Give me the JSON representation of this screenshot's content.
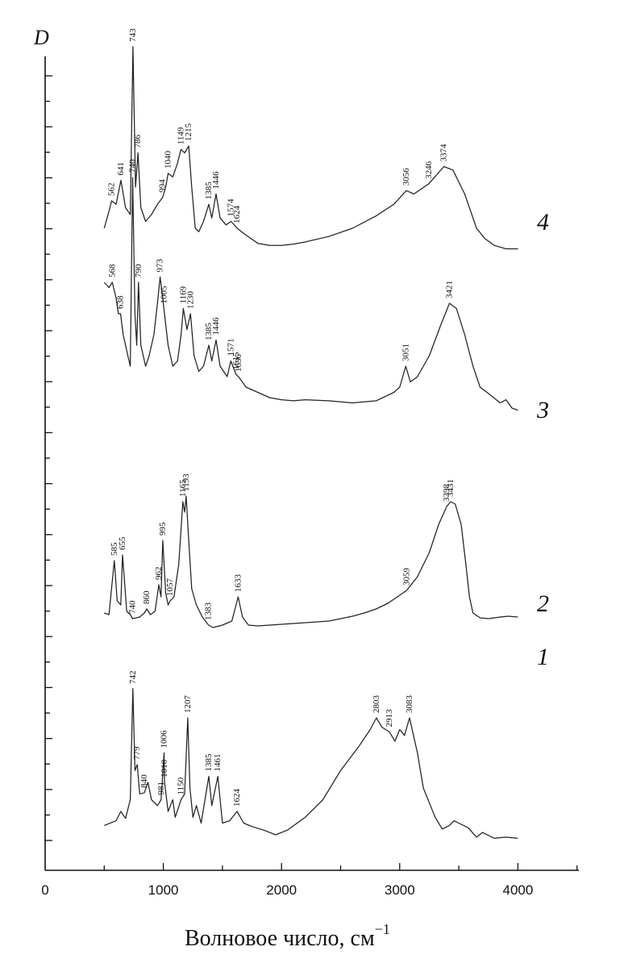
{
  "chart_data": {
    "type": "line",
    "ylabel": "D",
    "xlabel": "Волновое число, см",
    "xlabel_sup": "−1",
    "xlim": [
      0,
      4500
    ],
    "x_ticks": [
      0,
      1000,
      2000,
      3000,
      4000
    ],
    "x_tick_labels": [
      "0",
      "1000",
      "2000",
      "3000",
      "4000"
    ],
    "grid": false,
    "legend": "none",
    "series": [
      {
        "name": "1",
        "points": [
          [
            500,
            0.08
          ],
          [
            600,
            0.12
          ],
          [
            640,
            0.2
          ],
          [
            680,
            0.14
          ],
          [
            720,
            0.3
          ],
          [
            742,
            1.25
          ],
          [
            760,
            0.55
          ],
          [
            779,
            0.6
          ],
          [
            800,
            0.35
          ],
          [
            840,
            0.36
          ],
          [
            870,
            0.45
          ],
          [
            900,
            0.3
          ],
          [
            950,
            0.25
          ],
          [
            981,
            0.3
          ],
          [
            1006,
            0.7
          ],
          [
            1010,
            0.45
          ],
          [
            1040,
            0.2
          ],
          [
            1080,
            0.3
          ],
          [
            1100,
            0.15
          ],
          [
            1150,
            0.3
          ],
          [
            1180,
            0.35
          ],
          [
            1207,
            1.0
          ],
          [
            1225,
            0.4
          ],
          [
            1250,
            0.15
          ],
          [
            1280,
            0.25
          ],
          [
            1320,
            0.1
          ],
          [
            1385,
            0.5
          ],
          [
            1410,
            0.25
          ],
          [
            1461,
            0.5
          ],
          [
            1500,
            0.1
          ],
          [
            1560,
            0.12
          ],
          [
            1624,
            0.2
          ],
          [
            1680,
            0.1
          ],
          [
            1750,
            0.07
          ],
          [
            1850,
            0.04
          ],
          [
            1950,
            0.0
          ],
          [
            2050,
            0.04
          ],
          [
            2200,
            0.15
          ],
          [
            2350,
            0.3
          ],
          [
            2500,
            0.55
          ],
          [
            2650,
            0.75
          ],
          [
            2750,
            0.9
          ],
          [
            2803,
            1.0
          ],
          [
            2850,
            0.92
          ],
          [
            2913,
            0.88
          ],
          [
            2960,
            0.8
          ],
          [
            3000,
            0.9
          ],
          [
            3040,
            0.85
          ],
          [
            3083,
            1.0
          ],
          [
            3150,
            0.7
          ],
          [
            3200,
            0.4
          ],
          [
            3300,
            0.15
          ],
          [
            3360,
            0.05
          ],
          [
            3420,
            0.08
          ],
          [
            3460,
            0.12
          ],
          [
            3500,
            0.1
          ],
          [
            3580,
            0.06
          ],
          [
            3650,
            -0.02
          ],
          [
            3700,
            0.02
          ],
          [
            3800,
            -0.03
          ],
          [
            3900,
            -0.02
          ],
          [
            4000,
            -0.03
          ]
        ]
      },
      {
        "name": "2",
        "points": [
          [
            500,
            0.1
          ],
          [
            540,
            0.08
          ],
          [
            585,
            0.75
          ],
          [
            610,
            0.25
          ],
          [
            640,
            0.2
          ],
          [
            655,
            0.82
          ],
          [
            690,
            0.12
          ],
          [
            720,
            0.08
          ],
          [
            740,
            0.03
          ],
          [
            800,
            0.05
          ],
          [
            840,
            0.1
          ],
          [
            860,
            0.15
          ],
          [
            890,
            0.08
          ],
          [
            930,
            0.12
          ],
          [
            962,
            0.45
          ],
          [
            980,
            0.3
          ],
          [
            995,
            1.0
          ],
          [
            1020,
            0.35
          ],
          [
            1040,
            0.2
          ],
          [
            1057,
            0.25
          ],
          [
            1090,
            0.3
          ],
          [
            1130,
            0.7
          ],
          [
            1165,
            1.48
          ],
          [
            1180,
            1.35
          ],
          [
            1193,
            1.55
          ],
          [
            1215,
            1.0
          ],
          [
            1240,
            0.4
          ],
          [
            1280,
            0.2
          ],
          [
            1330,
            0.05
          ],
          [
            1383,
            -0.05
          ],
          [
            1420,
            -0.08
          ],
          [
            1500,
            -0.05
          ],
          [
            1580,
            0.0
          ],
          [
            1633,
            0.3
          ],
          [
            1670,
            0.05
          ],
          [
            1720,
            -0.05
          ],
          [
            1800,
            -0.06
          ],
          [
            1900,
            -0.05
          ],
          [
            2000,
            -0.04
          ],
          [
            2100,
            -0.03
          ],
          [
            2200,
            -0.02
          ],
          [
            2300,
            -0.01
          ],
          [
            2400,
            0.0
          ],
          [
            2500,
            0.03
          ],
          [
            2600,
            0.06
          ],
          [
            2700,
            0.1
          ],
          [
            2800,
            0.15
          ],
          [
            2900,
            0.22
          ],
          [
            3000,
            0.32
          ],
          [
            3059,
            0.38
          ],
          [
            3150,
            0.55
          ],
          [
            3250,
            0.85
          ],
          [
            3330,
            1.2
          ],
          [
            3398,
            1.42
          ],
          [
            3431,
            1.48
          ],
          [
            3470,
            1.45
          ],
          [
            3520,
            1.2
          ],
          [
            3560,
            0.7
          ],
          [
            3590,
            0.3
          ],
          [
            3620,
            0.1
          ],
          [
            3680,
            0.04
          ],
          [
            3750,
            0.03
          ],
          [
            3850,
            0.05
          ],
          [
            3920,
            0.06
          ],
          [
            4000,
            0.05
          ]
        ]
      },
      {
        "name": "3",
        "points": [
          [
            500,
            1.0
          ],
          [
            540,
            0.95
          ],
          [
            568,
            1.0
          ],
          [
            600,
            0.85
          ],
          [
            620,
            0.7
          ],
          [
            638,
            0.7
          ],
          [
            660,
            0.5
          ],
          [
            700,
            0.3
          ],
          [
            720,
            0.2
          ],
          [
            740,
            2.0
          ],
          [
            760,
            0.7
          ],
          [
            775,
            0.4
          ],
          [
            790,
            1.0
          ],
          [
            810,
            0.4
          ],
          [
            850,
            0.2
          ],
          [
            880,
            0.3
          ],
          [
            920,
            0.5
          ],
          [
            950,
            0.8
          ],
          [
            973,
            1.05
          ],
          [
            990,
            0.9
          ],
          [
            1005,
            0.75
          ],
          [
            1040,
            0.4
          ],
          [
            1080,
            0.2
          ],
          [
            1120,
            0.25
          ],
          [
            1150,
            0.5
          ],
          [
            1169,
            0.75
          ],
          [
            1200,
            0.55
          ],
          [
            1230,
            0.7
          ],
          [
            1260,
            0.3
          ],
          [
            1300,
            0.15
          ],
          [
            1340,
            0.2
          ],
          [
            1385,
            0.4
          ],
          [
            1410,
            0.25
          ],
          [
            1446,
            0.45
          ],
          [
            1480,
            0.2
          ],
          [
            1540,
            0.1
          ],
          [
            1571,
            0.25
          ],
          [
            1615,
            0.12
          ],
          [
            1636,
            0.1
          ],
          [
            1700,
            0.0
          ],
          [
            1800,
            -0.05
          ],
          [
            1900,
            -0.1
          ],
          [
            2000,
            -0.12
          ],
          [
            2100,
            -0.13
          ],
          [
            2200,
            -0.12
          ],
          [
            2400,
            -0.13
          ],
          [
            2600,
            -0.15
          ],
          [
            2800,
            -0.13
          ],
          [
            2950,
            -0.05
          ],
          [
            3000,
            0.0
          ],
          [
            3051,
            0.2
          ],
          [
            3090,
            0.05
          ],
          [
            3150,
            0.1
          ],
          [
            3250,
            0.3
          ],
          [
            3350,
            0.6
          ],
          [
            3421,
            0.8
          ],
          [
            3480,
            0.75
          ],
          [
            3550,
            0.5
          ],
          [
            3620,
            0.2
          ],
          [
            3680,
            0.0
          ],
          [
            3750,
            -0.06
          ],
          [
            3850,
            -0.15
          ],
          [
            3900,
            -0.12
          ],
          [
            3950,
            -0.2
          ],
          [
            4000,
            -0.22
          ]
        ]
      },
      {
        "name": "4",
        "points": [
          [
            500,
            0.0
          ],
          [
            540,
            0.25
          ],
          [
            562,
            0.4
          ],
          [
            600,
            0.35
          ],
          [
            641,
            0.7
          ],
          [
            680,
            0.3
          ],
          [
            720,
            0.2
          ],
          [
            743,
            2.65
          ],
          [
            765,
            0.6
          ],
          [
            786,
            1.1
          ],
          [
            810,
            0.3
          ],
          [
            850,
            0.1
          ],
          [
            900,
            0.2
          ],
          [
            950,
            0.35
          ],
          [
            994,
            0.45
          ],
          [
            1020,
            0.6
          ],
          [
            1040,
            0.8
          ],
          [
            1080,
            0.75
          ],
          [
            1120,
            0.95
          ],
          [
            1149,
            1.15
          ],
          [
            1180,
            1.1
          ],
          [
            1215,
            1.2
          ],
          [
            1240,
            0.6
          ],
          [
            1270,
            0.0
          ],
          [
            1300,
            -0.05
          ],
          [
            1340,
            0.1
          ],
          [
            1385,
            0.35
          ],
          [
            1410,
            0.15
          ],
          [
            1446,
            0.5
          ],
          [
            1480,
            0.15
          ],
          [
            1530,
            0.05
          ],
          [
            1574,
            0.1
          ],
          [
            1600,
            0.05
          ],
          [
            1624,
            0.0
          ],
          [
            1700,
            -0.1
          ],
          [
            1800,
            -0.22
          ],
          [
            1900,
            -0.25
          ],
          [
            2000,
            -0.25
          ],
          [
            2100,
            -0.23
          ],
          [
            2200,
            -0.2
          ],
          [
            2400,
            -0.12
          ],
          [
            2600,
            0.0
          ],
          [
            2800,
            0.18
          ],
          [
            2950,
            0.35
          ],
          [
            3056,
            0.55
          ],
          [
            3120,
            0.5
          ],
          [
            3246,
            0.65
          ],
          [
            3374,
            0.9
          ],
          [
            3450,
            0.85
          ],
          [
            3550,
            0.5
          ],
          [
            3650,
            0.0
          ],
          [
            3720,
            -0.15
          ],
          [
            3800,
            -0.25
          ],
          [
            3900,
            -0.3
          ],
          [
            4000,
            -0.3
          ]
        ]
      }
    ],
    "peak_labels": [
      {
        "series": "4",
        "labels": [
          "562",
          "641",
          "743",
          "786",
          "994",
          "1040",
          "1149",
          "1215",
          "1385",
          "1446",
          "1574",
          "1624",
          "3056",
          "3246",
          "3374"
        ]
      },
      {
        "series": "3",
        "labels": [
          "568",
          "638",
          "740",
          "790",
          "973",
          "1005",
          "1169",
          "1230",
          "1385",
          "1446",
          "1571",
          "1615",
          "1636",
          "3051",
          "3421"
        ]
      },
      {
        "series": "2",
        "labels": [
          "585",
          "655",
          "740",
          "860",
          "962",
          "995",
          "1057",
          "1165",
          "1193",
          "1383",
          "1633",
          "3059",
          "3398",
          "3431"
        ]
      },
      {
        "series": "1",
        "labels": [
          "742",
          "779",
          "840",
          "981",
          "1006",
          "1010",
          "1150",
          "1207",
          "1385",
          "1461",
          "1624",
          "2803",
          "2913",
          "3083"
        ]
      }
    ]
  }
}
